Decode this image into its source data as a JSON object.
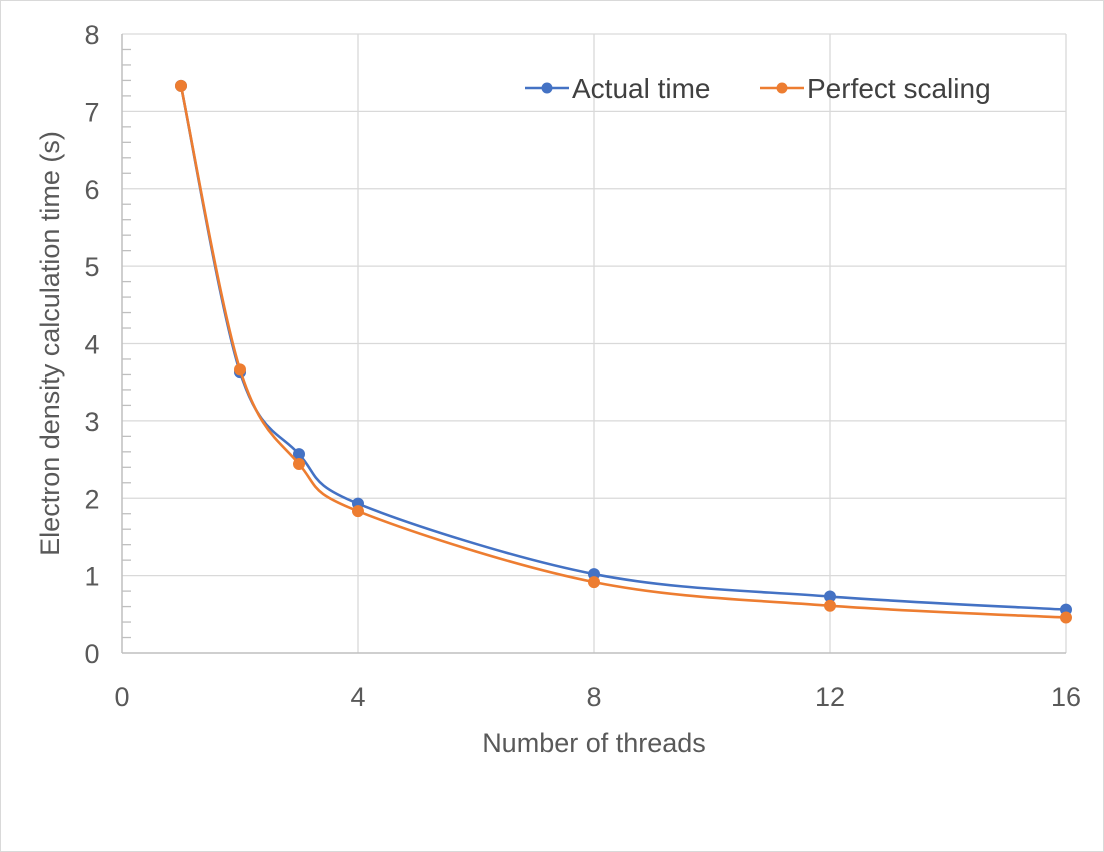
{
  "chart_data": {
    "type": "line",
    "title": "",
    "xlabel": "Number of threads",
    "ylabel": "Electron density calculation time (s)",
    "xlim": [
      0,
      16
    ],
    "ylim": [
      0,
      8
    ],
    "xticks": [
      0,
      4,
      8,
      12,
      16
    ],
    "yticks": [
      0,
      1,
      2,
      3,
      4,
      5,
      6,
      7,
      8
    ],
    "grid": true,
    "smooth": true,
    "legend_position": "top-right",
    "series": [
      {
        "name": "Actual time",
        "color": "#4472C4",
        "x": [
          1,
          2,
          3,
          4,
          8,
          12,
          16
        ],
        "y": [
          7.33,
          3.63,
          2.57,
          1.93,
          1.02,
          0.73,
          0.56
        ]
      },
      {
        "name": "Perfect scaling",
        "color": "#ED7D31",
        "x": [
          1,
          2,
          3,
          4,
          8,
          12,
          16
        ],
        "y": [
          7.33,
          3.665,
          2.443,
          1.833,
          0.916,
          0.611,
          0.458
        ]
      }
    ]
  }
}
